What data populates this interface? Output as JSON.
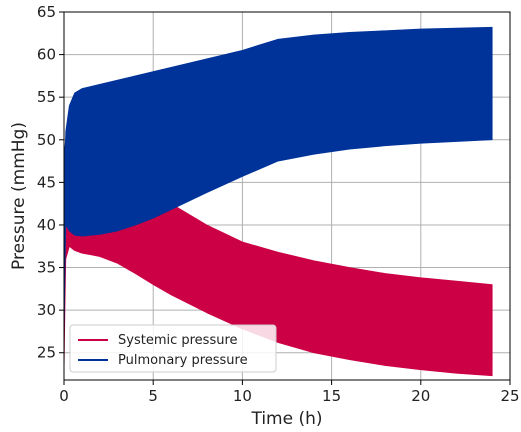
{
  "chart_data": {
    "type": "area",
    "title": "",
    "xlabel": "Time (h)",
    "ylabel": "Pressure (mmHg)",
    "xlim": [
      0,
      25
    ],
    "ylim": [
      21.8,
      65
    ],
    "x_ticks": [
      0,
      5,
      10,
      15,
      20,
      25
    ],
    "y_ticks": [
      25,
      30,
      35,
      40,
      45,
      50,
      55,
      60,
      65
    ],
    "grid": true,
    "legend_position": "lower-left",
    "series": [
      {
        "name": "Systemic pressure",
        "color": "#cc0044",
        "x": [
          0,
          0.05,
          0.1,
          0.3,
          0.6,
          1,
          1.5,
          2,
          3,
          4,
          5,
          6,
          8,
          10,
          12,
          14,
          16,
          18,
          20,
          22,
          24
        ],
        "upper": [
          44,
          46,
          48,
          50,
          52,
          52.5,
          52,
          50,
          47.5,
          45.5,
          44,
          42.5,
          40,
          38,
          36.8,
          35.8,
          35,
          34.3,
          33.8,
          33.4,
          33
        ],
        "lower": [
          22.5,
          30,
          36,
          37.5,
          37,
          36.7,
          36.5,
          36.3,
          35.5,
          34.3,
          33,
          31.8,
          29.7,
          27.8,
          26.2,
          25,
          24.2,
          23.5,
          23,
          22.6,
          22.3
        ]
      },
      {
        "name": "Pulmonary pressure",
        "color": "#003399",
        "x": [
          0,
          0.05,
          0.1,
          0.3,
          0.6,
          1,
          2,
          3,
          4,
          5,
          6,
          8,
          10,
          12,
          14,
          16,
          18,
          20,
          22,
          24
        ],
        "upper": [
          50,
          48,
          51,
          54,
          55.5,
          56,
          56.5,
          57,
          57.5,
          58,
          58.5,
          59.5,
          60.5,
          61.8,
          62.3,
          62.6,
          62.8,
          63,
          63.1,
          63.2
        ],
        "lower": [
          26,
          35,
          40,
          39.3,
          38.8,
          38.7,
          38.9,
          39.3,
          40,
          40.8,
          41.8,
          43.8,
          45.7,
          47.5,
          48.3,
          48.9,
          49.3,
          49.6,
          49.8,
          50
        ]
      }
    ]
  }
}
